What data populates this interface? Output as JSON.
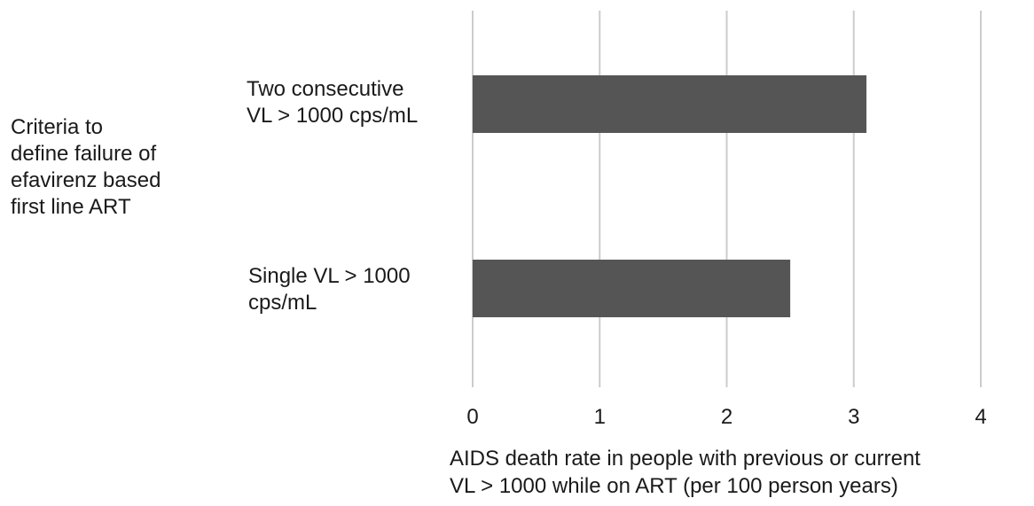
{
  "chart_data": {
    "type": "bar",
    "orientation": "horizontal",
    "categories": [
      "Two consecutive\nVL > 1000 cps/mL",
      "Single VL > 1000\ncps/mL"
    ],
    "values": [
      3.1,
      2.5
    ],
    "ylabel": "Criteria to\ndefine failure of\nefavirenz based\nfirst line ART",
    "xlabel": "AIDS death rate in people with previous or current\nVL > 1000 while on ART (per 100 person years)",
    "xlim": [
      0,
      4
    ],
    "xticks": [
      "0",
      "1",
      "2",
      "3",
      "4"
    ],
    "grid": true,
    "bar_color": "#555555",
    "grid_color": "#cccccc"
  }
}
